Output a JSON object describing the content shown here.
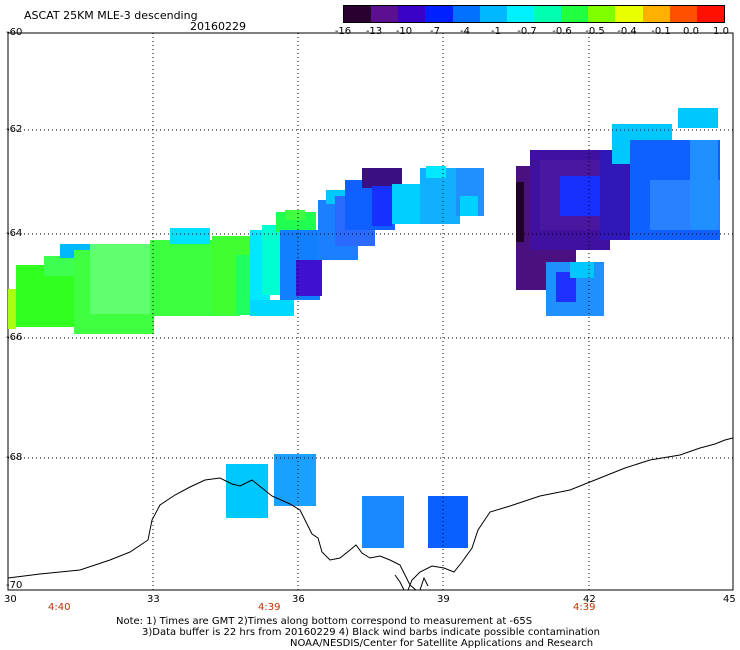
{
  "header": {
    "title": "ASCAT 25KM MLE-3 descending",
    "date": "20160229"
  },
  "colorbar": {
    "labels": [
      "-16",
      "-13",
      "-10",
      "-7",
      "-4",
      "-1",
      "-0.7",
      "-0.6",
      "-0.5",
      "-0.4",
      "-0.1",
      "0.0",
      "1.0"
    ],
    "colors": [
      "#2a0030",
      "#5a1090",
      "#3a00c8",
      "#0020ff",
      "#0070ff",
      "#00b8ff",
      "#00f0ff",
      "#00ffb0",
      "#20ff40",
      "#80ff00",
      "#e8ff00",
      "#ffb000",
      "#ff5000",
      "#ff1000"
    ]
  },
  "map": {
    "lat_labels": [
      "-60",
      "-62",
      "-64",
      "-66",
      "-68",
      "-70"
    ],
    "lon_labels": [
      "30",
      "33",
      "36",
      "39",
      "42",
      "45"
    ],
    "pass_times": [
      "4:40",
      "4:39",
      "4:39"
    ],
    "land_outline": "coastline"
  },
  "notes": {
    "line1": "Note: 1) Times are GMT 2)Times along bottom correspond to measurement at -65S",
    "line2": "3)Data buffer is 22 hrs from 20160229 4) Black wind barbs indicate possible contamination",
    "line3": "NOAA/NESDIS/Center for Satellite Applications and Research"
  }
}
